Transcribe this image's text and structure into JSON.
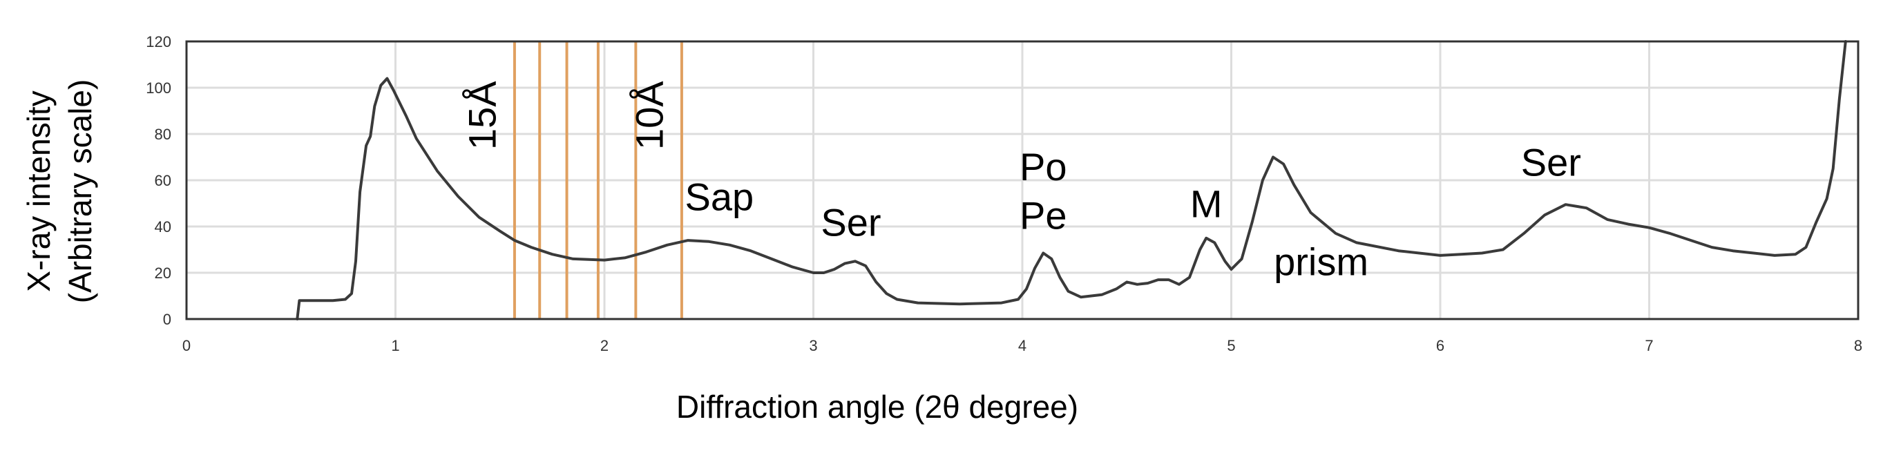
{
  "chart_data": {
    "type": "line",
    "title": "",
    "xlabel": "Diffraction angle  (2θ degree)",
    "ylabel": [
      "X-ray intensity",
      "(Arbitrary scale)"
    ],
    "xlim": [
      0,
      8
    ],
    "ylim": [
      0,
      120
    ],
    "x_ticks": [
      "0",
      "1",
      "2",
      "3",
      "4",
      "5",
      "6",
      "7",
      "8"
    ],
    "y_ticks": [
      "0",
      "20",
      "40",
      "60",
      "80",
      "100",
      "120"
    ],
    "grid": true,
    "line_color": "#3a3a3a",
    "reference_line_color": "#e0a060",
    "reference_lines_x": [
      1.57,
      1.69,
      1.82,
      1.97,
      2.15,
      2.37
    ],
    "series": [
      {
        "points": [
          [
            0.53,
            0
          ],
          [
            0.54,
            8
          ],
          [
            0.6,
            8
          ],
          [
            0.7,
            8
          ],
          [
            0.76,
            8.5
          ],
          [
            0.79,
            11
          ],
          [
            0.81,
            25
          ],
          [
            0.83,
            55
          ],
          [
            0.86,
            75
          ],
          [
            0.88,
            79
          ],
          [
            0.9,
            92
          ],
          [
            0.93,
            101
          ],
          [
            0.96,
            104
          ],
          [
            0.99,
            99
          ],
          [
            1.05,
            88
          ],
          [
            1.1,
            78
          ],
          [
            1.2,
            64
          ],
          [
            1.3,
            53
          ],
          [
            1.4,
            44
          ],
          [
            1.5,
            38
          ],
          [
            1.57,
            34
          ],
          [
            1.65,
            31
          ],
          [
            1.75,
            28
          ],
          [
            1.85,
            26
          ],
          [
            2.0,
            25.5
          ],
          [
            2.1,
            26.5
          ],
          [
            2.2,
            29
          ],
          [
            2.3,
            32
          ],
          [
            2.4,
            34
          ],
          [
            2.5,
            33.5
          ],
          [
            2.6,
            32
          ],
          [
            2.7,
            29.5
          ],
          [
            2.8,
            26
          ],
          [
            2.9,
            22.5
          ],
          [
            3.0,
            20
          ],
          [
            3.05,
            20
          ],
          [
            3.1,
            21.5
          ],
          [
            3.15,
            24
          ],
          [
            3.2,
            25
          ],
          [
            3.25,
            23
          ],
          [
            3.3,
            16
          ],
          [
            3.35,
            11
          ],
          [
            3.4,
            8.5
          ],
          [
            3.5,
            7
          ],
          [
            3.7,
            6.5
          ],
          [
            3.9,
            7
          ],
          [
            3.98,
            8.5
          ],
          [
            4.02,
            13
          ],
          [
            4.06,
            22
          ],
          [
            4.1,
            28.5
          ],
          [
            4.14,
            26
          ],
          [
            4.18,
            18
          ],
          [
            4.22,
            12
          ],
          [
            4.28,
            9.5
          ],
          [
            4.38,
            10.5
          ],
          [
            4.45,
            13
          ],
          [
            4.5,
            16
          ],
          [
            4.55,
            15
          ],
          [
            4.6,
            15.5
          ],
          [
            4.65,
            17
          ],
          [
            4.7,
            17
          ],
          [
            4.75,
            15
          ],
          [
            4.8,
            18
          ],
          [
            4.85,
            30
          ],
          [
            4.88,
            35
          ],
          [
            4.92,
            33
          ],
          [
            4.97,
            25
          ],
          [
            5.0,
            21.5
          ],
          [
            5.05,
            26
          ],
          [
            5.1,
            42
          ],
          [
            5.15,
            60
          ],
          [
            5.2,
            70
          ],
          [
            5.25,
            67
          ],
          [
            5.3,
            58
          ],
          [
            5.38,
            46
          ],
          [
            5.5,
            37
          ],
          [
            5.6,
            33
          ],
          [
            5.8,
            29.5
          ],
          [
            6.0,
            27.5
          ],
          [
            6.1,
            28
          ],
          [
            6.2,
            28.5
          ],
          [
            6.3,
            30
          ],
          [
            6.4,
            37
          ],
          [
            6.5,
            45
          ],
          [
            6.6,
            49.5
          ],
          [
            6.7,
            48
          ],
          [
            6.8,
            43
          ],
          [
            6.9,
            41
          ],
          [
            7.0,
            39.5
          ],
          [
            7.1,
            37
          ],
          [
            7.2,
            34
          ],
          [
            7.3,
            31
          ],
          [
            7.4,
            29.5
          ],
          [
            7.5,
            28.5
          ],
          [
            7.6,
            27.5
          ],
          [
            7.7,
            28
          ],
          [
            7.75,
            31
          ],
          [
            7.8,
            42
          ],
          [
            7.85,
            52
          ],
          [
            7.88,
            65
          ],
          [
            7.91,
            95
          ],
          [
            7.94,
            120
          ]
        ]
      }
    ],
    "annotations": [
      {
        "text": "15Å",
        "x": 1.48,
        "y": 88,
        "rotation": -90
      },
      {
        "text": "10Å",
        "x": 2.28,
        "y": 88,
        "rotation": -90
      },
      {
        "text": "Sap",
        "x": 2.55,
        "y": 47,
        "rotation": 0
      },
      {
        "text": "Ser",
        "x": 3.18,
        "y": 36,
        "rotation": 0
      },
      {
        "text": "Po",
        "x": 4.1,
        "y": 60,
        "rotation": 0
      },
      {
        "text": "Pe",
        "x": 4.1,
        "y": 39,
        "rotation": 0
      },
      {
        "text": "M",
        "x": 4.88,
        "y": 44,
        "rotation": 0
      },
      {
        "text": "prism",
        "x": 5.43,
        "y": 19,
        "rotation": 0
      },
      {
        "text": "Ser",
        "x": 6.53,
        "y": 62,
        "rotation": 0
      }
    ]
  }
}
